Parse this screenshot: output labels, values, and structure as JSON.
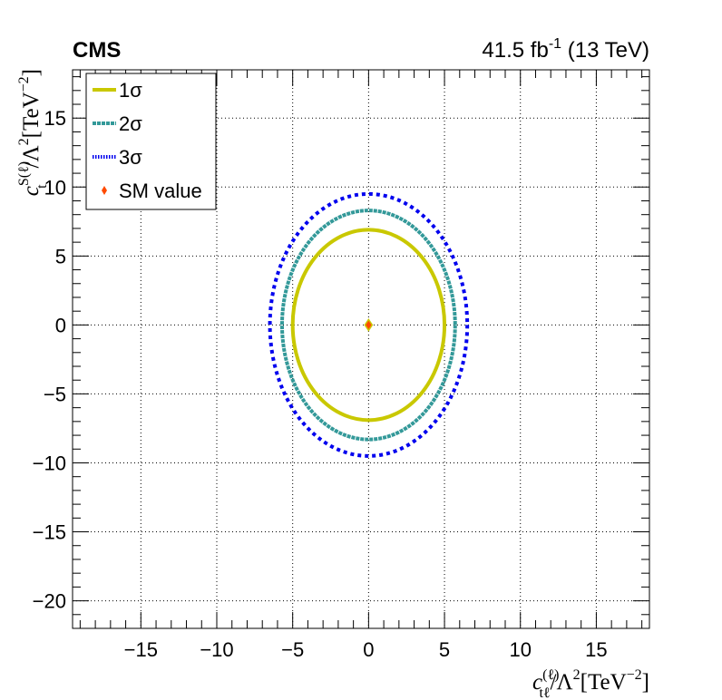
{
  "header": {
    "experiment": "CMS",
    "lumi_value": "41.5 fb",
    "lumi_exp": "-1",
    "energy": " (13 TeV)"
  },
  "axes": {
    "x_title_main": "c",
    "x_title_sup": "(ℓ)",
    "x_title_sub": "tℓ",
    "x_title_rest": "/Λ",
    "x_title_sq": "2",
    "x_title_unit": "[TeV",
    "x_title_unit_exp": "−2",
    "x_title_close": "]",
    "y_title_main": "c",
    "y_title_sup": "S(ℓ)",
    "y_title_sub": "t",
    "y_title_rest": "/Λ",
    "y_title_sq": "2",
    "y_title_unit": "[TeV",
    "y_title_unit_exp": "−2",
    "y_title_close": "]"
  },
  "legend": {
    "placement": "top-left",
    "entries": [
      {
        "label": "1σ",
        "color": "#c9c800",
        "style": "solid"
      },
      {
        "label": "2σ",
        "color": "#339999",
        "style": "dashed"
      },
      {
        "label": "3σ",
        "color": "#0000ee",
        "style": "dotted"
      },
      {
        "label": "SM value",
        "color": "#ff4a00",
        "style": "marker"
      }
    ]
  },
  "chart_data": {
    "type": "scatter",
    "title": "",
    "xlim": [
      -19.5,
      18.5
    ],
    "ylim": [
      -22,
      18.5
    ],
    "xticks": [
      -15,
      -10,
      -5,
      0,
      5,
      10,
      15
    ],
    "yticks": [
      -20,
      -15,
      -10,
      -5,
      0,
      5,
      10,
      15
    ],
    "grid": true,
    "series": [
      {
        "name": "1σ",
        "shape": "ellipse",
        "center": [
          0,
          0
        ],
        "x_half_width": 5.0,
        "y_half_height": 6.9,
        "color": "#c9c800"
      },
      {
        "name": "2σ",
        "shape": "ellipse",
        "center": [
          0,
          0
        ],
        "x_half_width": 5.7,
        "y_half_height": 8.3,
        "color": "#339999"
      },
      {
        "name": "3σ",
        "shape": "ellipse",
        "center": [
          0,
          0
        ],
        "x_half_width": 6.5,
        "y_half_height": 9.5,
        "color": "#0000ee"
      },
      {
        "name": "SM value",
        "shape": "point",
        "x": 0,
        "y": 0,
        "color": "#ff4a00"
      }
    ]
  }
}
